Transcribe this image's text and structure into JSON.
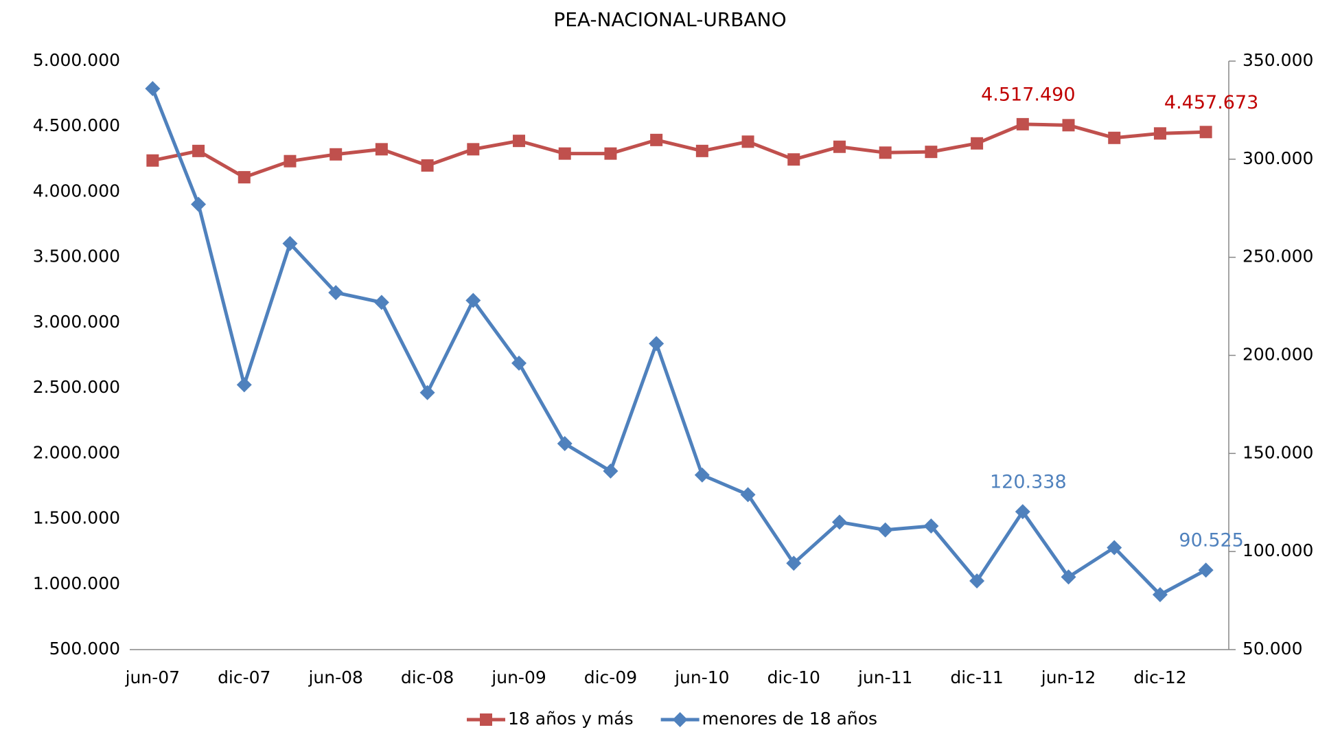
{
  "chart_data": {
    "type": "line",
    "title": "PEA-NACIONAL-URBANO",
    "categories": [
      "jun-07",
      null,
      "dic-07",
      null,
      "jun-08",
      null,
      "dic-08",
      null,
      "jun-09",
      null,
      "dic-09",
      null,
      "jun-10",
      null,
      "dic-10",
      null,
      "jun-11",
      null,
      "dic-11",
      null,
      "jun-12",
      null,
      "dic-12",
      null
    ],
    "series": [
      {
        "name": "18 años y más",
        "color": "#c0504d",
        "marker": "square",
        "values": [
          4240000,
          4313000,
          4112000,
          4235000,
          4287000,
          4326000,
          4202000,
          4326000,
          4390000,
          4293000,
          4293000,
          4397000,
          4313000,
          4384000,
          4248000,
          4345000,
          4300000,
          4306000,
          4371000,
          4517490,
          4510000,
          4413000,
          4447000,
          4457673
        ],
        "value_labels": [
          null,
          null,
          null,
          null,
          null,
          null,
          null,
          null,
          null,
          null,
          null,
          null,
          null,
          null,
          null,
          null,
          null,
          null,
          null,
          "4.517.490",
          null,
          null,
          null,
          "4.457.673"
        ],
        "label_color": "#c00000"
      },
      {
        "name": "menores de 18 años",
        "color": "#4f81bd",
        "marker": "diamond",
        "axis": "y2",
        "values": [
          336000,
          277000,
          185000,
          257000,
          232000,
          227000,
          181000,
          228000,
          196000,
          155000,
          141000,
          206000,
          139000,
          129000,
          94000,
          115000,
          111000,
          113000,
          85000,
          120338,
          87000,
          102000,
          78000,
          90525
        ],
        "value_labels": [
          null,
          null,
          null,
          null,
          null,
          null,
          null,
          null,
          null,
          null,
          null,
          null,
          null,
          null,
          null,
          null,
          null,
          null,
          null,
          "120.338",
          null,
          null,
          null,
          "90.525"
        ],
        "label_color": "#4f81bd"
      }
    ],
    "ylim": [
      500000,
      5000000
    ],
    "yticks": [
      {
        "value": 500000,
        "label": "500.000"
      },
      {
        "value": 1000000,
        "label": "1.000.000"
      },
      {
        "value": 1500000,
        "label": "1.500.000"
      },
      {
        "value": 2000000,
        "label": "2.000.000"
      },
      {
        "value": 2500000,
        "label": "2.500.000"
      },
      {
        "value": 3000000,
        "label": "3.000.000"
      },
      {
        "value": 3500000,
        "label": "3.500.000"
      },
      {
        "value": 4000000,
        "label": "4.000.000"
      },
      {
        "value": 4500000,
        "label": "4.500.000"
      },
      {
        "value": 5000000,
        "label": "5.000.000"
      }
    ],
    "y2lim": [
      50000,
      350000
    ],
    "y2ticks": [
      {
        "value": 50000,
        "label": "50.000"
      },
      {
        "value": 100000,
        "label": "100.000"
      },
      {
        "value": 150000,
        "label": "150.000"
      },
      {
        "value": 200000,
        "label": "200.000"
      },
      {
        "value": 250000,
        "label": "250.000"
      },
      {
        "value": 300000,
        "label": "300.000"
      },
      {
        "value": 350000,
        "label": "350.000"
      }
    ],
    "grid": false,
    "legend": "bottom"
  }
}
